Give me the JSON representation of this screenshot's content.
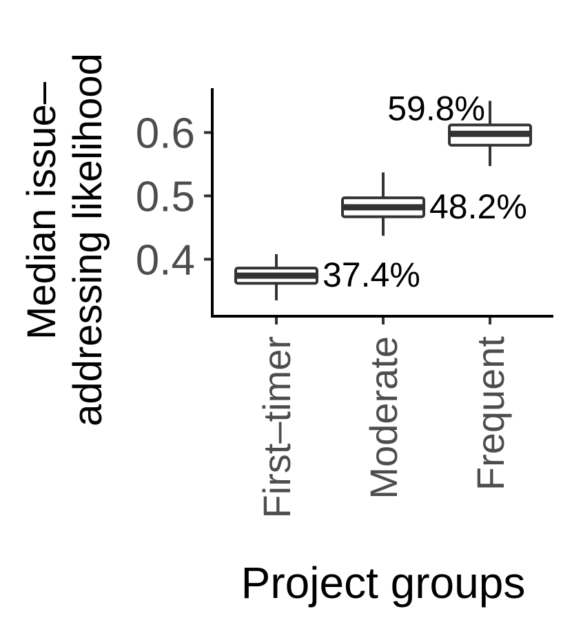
{
  "chart_data": {
    "type": "box",
    "title": "",
    "xlabel": "Project groups",
    "ylabel_lines": [
      "Median issue–",
      "addressing likelihood"
    ],
    "categories": [
      "First–timer",
      "Moderate",
      "Frequent"
    ],
    "ylim": [
      0.31,
      0.67
    ],
    "yticks": [
      {
        "value": 0.4,
        "label": "0.4"
      },
      {
        "value": 0.5,
        "label": "0.5"
      },
      {
        "value": 0.6,
        "label": "0.6"
      }
    ],
    "boxes": [
      {
        "category": "First–timer",
        "min": 0.335,
        "q1": 0.362,
        "median": 0.374,
        "q3": 0.386,
        "max": 0.408,
        "label": "37.4%",
        "label_position": "right"
      },
      {
        "category": "Moderate",
        "min": 0.437,
        "q1": 0.467,
        "median": 0.482,
        "q3": 0.497,
        "max": 0.537,
        "label": "48.2%",
        "label_position": "right"
      },
      {
        "category": "Frequent",
        "min": 0.547,
        "q1": 0.58,
        "median": 0.598,
        "q3": 0.612,
        "max": 0.65,
        "label": "59.8%",
        "label_position": "left"
      }
    ],
    "grid": false,
    "legend": "none",
    "colors": {
      "box_stroke": "#333333",
      "box_fill": "#ffffff",
      "axis": "#000000",
      "tick_text": "#4d4d4d"
    }
  }
}
